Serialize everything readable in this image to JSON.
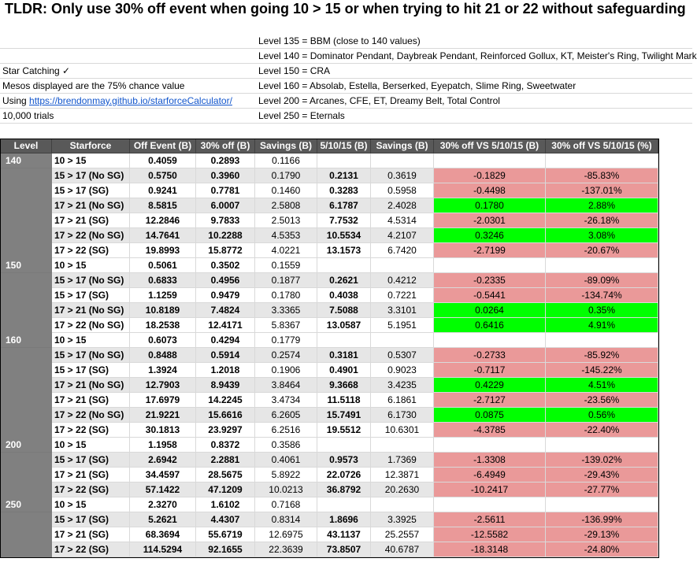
{
  "title": "TLDR:  Only use 30% off event when going 10 > 15 or when trying to hit 21 or 22 without safeguarding",
  "notes_left": [
    "",
    "",
    "Star Catching ✓",
    "Mesos displayed are the 75% chance value",
    "Using ",
    "10,000 trials"
  ],
  "link_text": "https://brendonmay.github.io/starforceCalculator/",
  "notes_right": [
    "Level 135 = BBM (close to 140 values)",
    "Level 140 = Dominator Pendant, Daybreak Pendant, Reinforced Gollux, KT, Meister's Ring, Twilight Mark",
    "Level 150 = CRA",
    "Level 160 = Absolab, Estella, Berserked, Eyepatch, Slime Ring, Sweetwater",
    "Level 200 = Arcanes, CFE, ET, Dreamy Belt, Total Control",
    "Level 250 = Eternals"
  ],
  "headers": [
    "Level",
    "Starforce",
    "Off Event (B)",
    "30% off (B)",
    "Savings (B)",
    "5/10/15 (B)",
    "Savings (B)",
    "30% off VS 5/10/15 (B)",
    "30% off VS 5/10/15 (%)"
  ],
  "groups": [
    {
      "level": "140",
      "rows": [
        {
          "sf": "10 > 15",
          "off": "0.4059",
          "p30": "0.2893",
          "sav": "0.1166",
          "f": "",
          "sav2": "",
          "vs": "",
          "pct": "",
          "color": "none"
        },
        {
          "sf": "15 > 17 (No SG)",
          "off": "0.5750",
          "p30": "0.3960",
          "sav": "0.1790",
          "f": "0.2131",
          "sav2": "0.3619",
          "vs": "-0.1829",
          "pct": "-85.83%",
          "color": "red"
        },
        {
          "sf": "15 > 17 (SG)",
          "off": "0.9241",
          "p30": "0.7781",
          "sav": "0.1460",
          "f": "0.3283",
          "sav2": "0.5958",
          "vs": "-0.4498",
          "pct": "-137.01%",
          "color": "red"
        },
        {
          "sf": "17 > 21 (No SG)",
          "off": "8.5815",
          "p30": "6.0007",
          "sav": "2.5808",
          "f": "6.1787",
          "sav2": "2.4028",
          "vs": "0.1780",
          "pct": "2.88%",
          "color": "green"
        },
        {
          "sf": "17 > 21 (SG)",
          "off": "12.2846",
          "p30": "9.7833",
          "sav": "2.5013",
          "f": "7.7532",
          "sav2": "4.5314",
          "vs": "-2.0301",
          "pct": "-26.18%",
          "color": "red"
        },
        {
          "sf": "17 > 22 (No SG)",
          "off": "14.7641",
          "p30": "10.2288",
          "sav": "4.5353",
          "f": "10.5534",
          "sav2": "4.2107",
          "vs": "0.3246",
          "pct": "3.08%",
          "color": "green"
        },
        {
          "sf": "17 > 22 (SG)",
          "off": "19.8993",
          "p30": "15.8772",
          "sav": "4.0221",
          "f": "13.1573",
          "sav2": "6.7420",
          "vs": "-2.7199",
          "pct": "-20.67%",
          "color": "red"
        }
      ]
    },
    {
      "level": "150",
      "rows": [
        {
          "sf": "10 > 15",
          "off": "0.5061",
          "p30": "0.3502",
          "sav": "0.1559",
          "f": "",
          "sav2": "",
          "vs": "",
          "pct": "",
          "color": "none"
        },
        {
          "sf": "15 > 17 (No SG)",
          "off": "0.6833",
          "p30": "0.4956",
          "sav": "0.1877",
          "f": "0.2621",
          "sav2": "0.4212",
          "vs": "-0.2335",
          "pct": "-89.09%",
          "color": "red"
        },
        {
          "sf": "15 > 17 (SG)",
          "off": "1.1259",
          "p30": "0.9479",
          "sav": "0.1780",
          "f": "0.4038",
          "sav2": "0.7221",
          "vs": "-0.5441",
          "pct": "-134.74%",
          "color": "red"
        },
        {
          "sf": "17 > 21 (No SG)",
          "off": "10.8189",
          "p30": "7.4824",
          "sav": "3.3365",
          "f": "7.5088",
          "sav2": "3.3101",
          "vs": "0.0264",
          "pct": "0.35%",
          "color": "green"
        },
        {
          "sf": "17 > 22 (No SG)",
          "off": "18.2538",
          "p30": "12.4171",
          "sav": "5.8367",
          "f": "13.0587",
          "sav2": "5.1951",
          "vs": "0.6416",
          "pct": "4.91%",
          "color": "green"
        }
      ]
    },
    {
      "level": "160",
      "rows": [
        {
          "sf": "10 > 15",
          "off": "0.6073",
          "p30": "0.4294",
          "sav": "0.1779",
          "f": "",
          "sav2": "",
          "vs": "",
          "pct": "",
          "color": "none"
        },
        {
          "sf": "15 > 17 (No SG)",
          "off": "0.8488",
          "p30": "0.5914",
          "sav": "0.2574",
          "f": "0.3181",
          "sav2": "0.5307",
          "vs": "-0.2733",
          "pct": "-85.92%",
          "color": "red"
        },
        {
          "sf": "15 > 17 (SG)",
          "off": "1.3924",
          "p30": "1.2018",
          "sav": "0.1906",
          "f": "0.4901",
          "sav2": "0.9023",
          "vs": "-0.7117",
          "pct": "-145.22%",
          "color": "red"
        },
        {
          "sf": "17 > 21 (No SG)",
          "off": "12.7903",
          "p30": "8.9439",
          "sav": "3.8464",
          "f": "9.3668",
          "sav2": "3.4235",
          "vs": "0.4229",
          "pct": "4.51%",
          "color": "green"
        },
        {
          "sf": "17 > 21 (SG)",
          "off": "17.6979",
          "p30": "14.2245",
          "sav": "3.4734",
          "f": "11.5118",
          "sav2": "6.1861",
          "vs": "-2.7127",
          "pct": "-23.56%",
          "color": "red"
        },
        {
          "sf": "17 > 22 (No SG)",
          "off": "21.9221",
          "p30": "15.6616",
          "sav": "6.2605",
          "f": "15.7491",
          "sav2": "6.1730",
          "vs": "0.0875",
          "pct": "0.56%",
          "color": "green"
        },
        {
          "sf": "17 > 22 (SG)",
          "off": "30.1813",
          "p30": "23.9297",
          "sav": "6.2516",
          "f": "19.5512",
          "sav2": "10.6301",
          "vs": "-4.3785",
          "pct": "-22.40%",
          "color": "red"
        }
      ]
    },
    {
      "level": "200",
      "rows": [
        {
          "sf": "10 > 15",
          "off": "1.1958",
          "p30": "0.8372",
          "sav": "0.3586",
          "f": "",
          "sav2": "",
          "vs": "",
          "pct": "",
          "color": "none"
        },
        {
          "sf": "15 > 17 (SG)",
          "off": "2.6942",
          "p30": "2.2881",
          "sav": "0.4061",
          "f": "0.9573",
          "sav2": "1.7369",
          "vs": "-1.3308",
          "pct": "-139.02%",
          "color": "red"
        },
        {
          "sf": "17 > 21 (SG)",
          "off": "34.4597",
          "p30": "28.5675",
          "sav": "5.8922",
          "f": "22.0726",
          "sav2": "12.3871",
          "vs": "-6.4949",
          "pct": "-29.43%",
          "color": "red"
        },
        {
          "sf": "17 > 22 (SG)",
          "off": "57.1422",
          "p30": "47.1209",
          "sav": "10.0213",
          "f": "36.8792",
          "sav2": "20.2630",
          "vs": "-10.2417",
          "pct": "-27.77%",
          "color": "red"
        }
      ]
    },
    {
      "level": "250",
      "rows": [
        {
          "sf": "10 > 15",
          "off": "2.3270",
          "p30": "1.6102",
          "sav": "0.7168",
          "f": "",
          "sav2": "",
          "vs": "",
          "pct": "",
          "color": "none"
        },
        {
          "sf": "15 > 17 (SG)",
          "off": "5.2621",
          "p30": "4.4307",
          "sav": "0.8314",
          "f": "1.8696",
          "sav2": "3.3925",
          "vs": "-2.5611",
          "pct": "-136.99%",
          "color": "red"
        },
        {
          "sf": "17 > 21 (SG)",
          "off": "68.3694",
          "p30": "55.6719",
          "sav": "12.6975",
          "f": "43.1137",
          "sav2": "25.2557",
          "vs": "-12.5582",
          "pct": "-29.13%",
          "color": "red"
        },
        {
          "sf": "17 > 22 (SG)",
          "off": "114.5294",
          "p30": "92.1655",
          "sav": "22.3639",
          "f": "73.8507",
          "sav2": "40.6787",
          "vs": "-18.3148",
          "pct": "-24.80%",
          "color": "red"
        }
      ]
    }
  ],
  "colors": {
    "header_bg": "#595959",
    "level_bg": "#808080",
    "row_grey": "#e6e6e6",
    "red": "#ea9999",
    "green": "#00ff00",
    "link": "#1155cc"
  }
}
